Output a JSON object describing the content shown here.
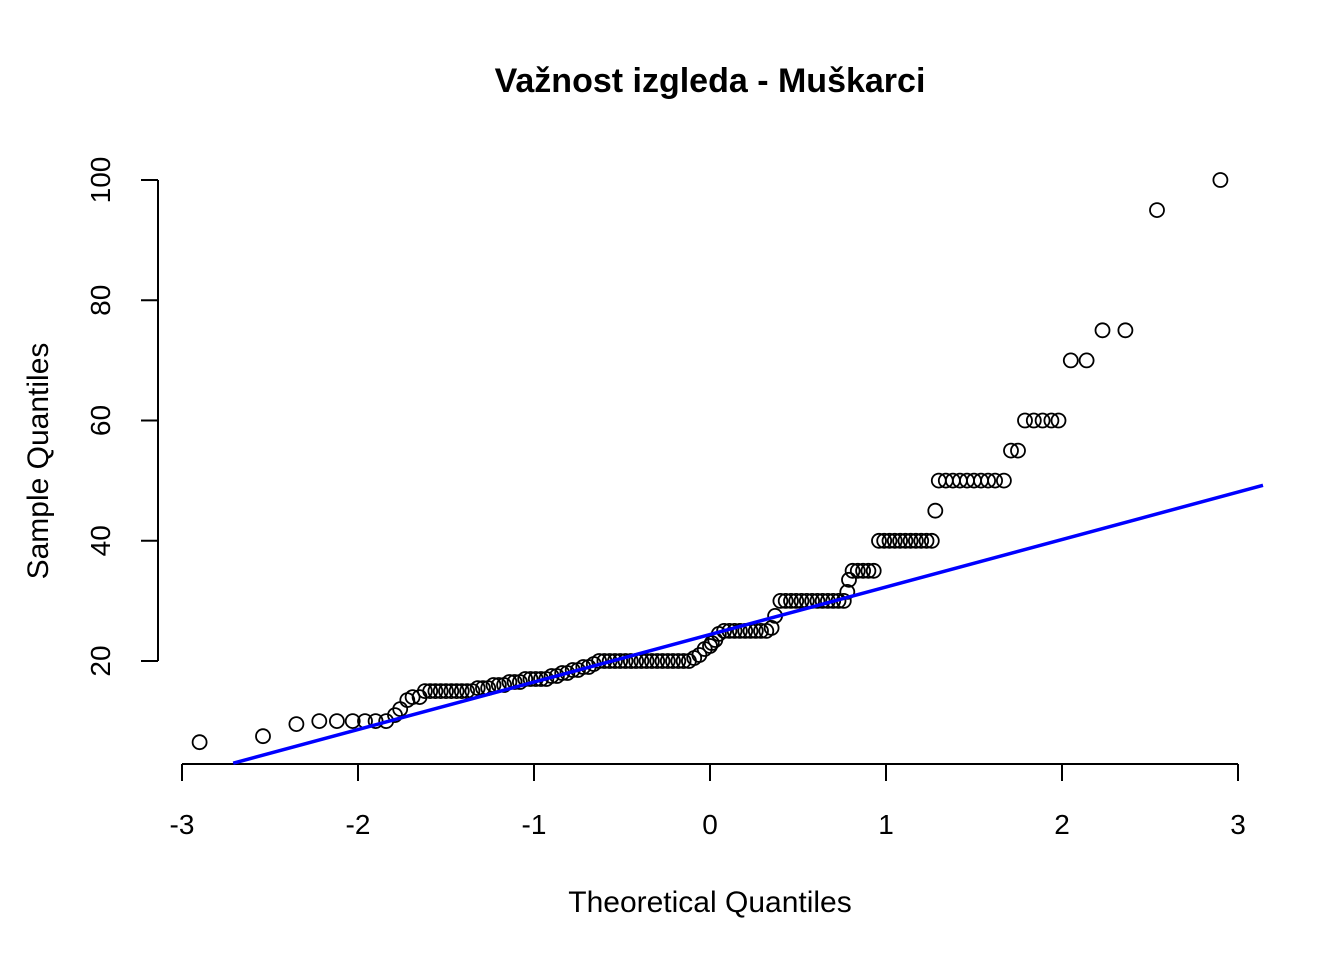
{
  "chart_data": {
    "type": "scatter",
    "title": "Važnost izgleda - Muškarci",
    "xlabel": "Theoretical Quantiles",
    "ylabel": "Sample Quantiles",
    "xlim": [
      -3,
      3
    ],
    "ylim": [
      3,
      100
    ],
    "x_ticks": [
      "-3",
      "-2",
      "-1",
      "0",
      "1",
      "2",
      "3"
    ],
    "y_ticks": [
      "20",
      "40",
      "60",
      "80",
      "100"
    ],
    "grid": false,
    "reference_line": {
      "color": "#0000ff",
      "slope": 7.9,
      "intercept": 24.4
    },
    "point_color": "#000000",
    "points": [
      [
        -2.9,
        6.5
      ],
      [
        -2.54,
        7.5
      ],
      [
        -2.35,
        9.5
      ],
      [
        -2.22,
        10
      ],
      [
        -2.12,
        10
      ],
      [
        -2.03,
        10
      ],
      [
        -1.96,
        10
      ],
      [
        -1.9,
        10
      ],
      [
        -1.84,
        10
      ],
      [
        -1.79,
        11
      ],
      [
        -1.76,
        12
      ],
      [
        -1.72,
        13.5
      ],
      [
        -1.69,
        14
      ],
      [
        -1.65,
        14
      ],
      [
        -1.62,
        15
      ],
      [
        -1.59,
        15
      ],
      [
        -1.56,
        15
      ],
      [
        -1.53,
        15
      ],
      [
        -1.5,
        15
      ],
      [
        -1.47,
        15
      ],
      [
        -1.44,
        15
      ],
      [
        -1.41,
        15
      ],
      [
        -1.38,
        15
      ],
      [
        -1.35,
        15
      ],
      [
        -1.32,
        15.5
      ],
      [
        -1.29,
        15.5
      ],
      [
        -1.26,
        15.5
      ],
      [
        -1.23,
        16
      ],
      [
        -1.2,
        16
      ],
      [
        -1.17,
        16
      ],
      [
        -1.14,
        16.5
      ],
      [
        -1.11,
        16.5
      ],
      [
        -1.08,
        16.5
      ],
      [
        -1.05,
        17
      ],
      [
        -1.02,
        17
      ],
      [
        -0.99,
        17
      ],
      [
        -0.96,
        17
      ],
      [
        -0.93,
        17
      ],
      [
        -0.9,
        17.5
      ],
      [
        -0.87,
        17.5
      ],
      [
        -0.84,
        18
      ],
      [
        -0.81,
        18
      ],
      [
        -0.78,
        18.5
      ],
      [
        -0.75,
        18.5
      ],
      [
        -0.72,
        19
      ],
      [
        -0.69,
        19
      ],
      [
        -0.66,
        19.5
      ],
      [
        -0.63,
        20
      ],
      [
        -0.6,
        20
      ],
      [
        -0.57,
        20
      ],
      [
        -0.54,
        20
      ],
      [
        -0.51,
        20
      ],
      [
        -0.48,
        20
      ],
      [
        -0.45,
        20
      ],
      [
        -0.42,
        20
      ],
      [
        -0.39,
        20
      ],
      [
        -0.36,
        20
      ],
      [
        -0.33,
        20
      ],
      [
        -0.3,
        20
      ],
      [
        -0.27,
        20
      ],
      [
        -0.24,
        20
      ],
      [
        -0.21,
        20
      ],
      [
        -0.18,
        20
      ],
      [
        -0.15,
        20
      ],
      [
        -0.12,
        20
      ],
      [
        -0.09,
        20.5
      ],
      [
        -0.06,
        21
      ],
      [
        -0.03,
        22
      ],
      [
        0.0,
        22.5
      ],
      [
        0.01,
        23
      ],
      [
        0.03,
        23.5
      ],
      [
        0.05,
        24.5
      ],
      [
        0.08,
        25
      ],
      [
        0.11,
        25
      ],
      [
        0.14,
        25
      ],
      [
        0.17,
        25
      ],
      [
        0.2,
        25
      ],
      [
        0.23,
        25
      ],
      [
        0.26,
        25
      ],
      [
        0.29,
        25
      ],
      [
        0.32,
        25
      ],
      [
        0.35,
        25.5
      ],
      [
        0.37,
        27.5
      ],
      [
        0.4,
        30
      ],
      [
        0.43,
        30
      ],
      [
        0.46,
        30
      ],
      [
        0.49,
        30
      ],
      [
        0.52,
        30
      ],
      [
        0.55,
        30
      ],
      [
        0.58,
        30
      ],
      [
        0.61,
        30
      ],
      [
        0.64,
        30
      ],
      [
        0.67,
        30
      ],
      [
        0.7,
        30
      ],
      [
        0.73,
        30
      ],
      [
        0.76,
        30
      ],
      [
        0.78,
        31.5
      ],
      [
        0.79,
        33.5
      ],
      [
        0.81,
        35
      ],
      [
        0.84,
        35
      ],
      [
        0.87,
        35
      ],
      [
        0.9,
        35
      ],
      [
        0.93,
        35
      ],
      [
        0.96,
        40
      ],
      [
        0.99,
        40
      ],
      [
        1.02,
        40
      ],
      [
        1.05,
        40
      ],
      [
        1.08,
        40
      ],
      [
        1.11,
        40
      ],
      [
        1.14,
        40
      ],
      [
        1.17,
        40
      ],
      [
        1.2,
        40
      ],
      [
        1.23,
        40
      ],
      [
        1.26,
        40
      ],
      [
        1.28,
        45
      ],
      [
        1.3,
        50
      ],
      [
        1.34,
        50
      ],
      [
        1.38,
        50
      ],
      [
        1.42,
        50
      ],
      [
        1.46,
        50
      ],
      [
        1.5,
        50
      ],
      [
        1.54,
        50
      ],
      [
        1.58,
        50
      ],
      [
        1.62,
        50
      ],
      [
        1.67,
        50
      ],
      [
        1.71,
        55
      ],
      [
        1.75,
        55
      ],
      [
        1.79,
        60
      ],
      [
        1.84,
        60
      ],
      [
        1.89,
        60
      ],
      [
        1.94,
        60
      ],
      [
        1.98,
        60
      ],
      [
        2.05,
        70
      ],
      [
        2.14,
        70
      ],
      [
        2.23,
        75
      ],
      [
        2.36,
        75
      ],
      [
        2.54,
        95
      ],
      [
        2.9,
        100
      ]
    ]
  }
}
